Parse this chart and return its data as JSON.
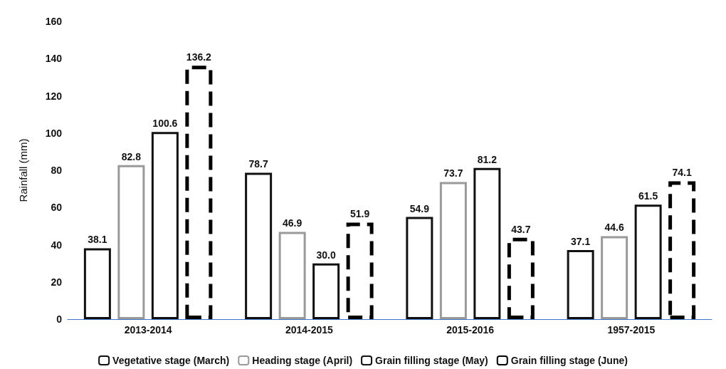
{
  "chart_data": {
    "type": "bar",
    "ylabel": "Rainfall (mm)",
    "categories": [
      "2013-2014",
      "2014-2015",
      "2015-2016",
      "1957-2015"
    ],
    "series": [
      {
        "name": "Vegetative stage (March)",
        "color": "#111111",
        "values": [
          38.1,
          78.7,
          54.9,
          37.1
        ],
        "value_labels": [
          "38.1",
          "78.7",
          "54.9",
          "37.1"
        ],
        "line_style": "solid"
      },
      {
        "name": "Heading stage (April)",
        "color": "#9a9a9a",
        "values": [
          82.8,
          46.9,
          73.7,
          44.6
        ],
        "value_labels": [
          "82.8",
          "46.9",
          "73.7",
          "44.6"
        ],
        "line_style": "solid"
      },
      {
        "name": "Grain filling stage (May)",
        "color": "#111111",
        "values": [
          100.6,
          30.0,
          81.2,
          61.5
        ],
        "value_labels": [
          "100.6",
          "30.0",
          "81.2",
          "61.5"
        ],
        "line_style": "solid"
      },
      {
        "name": "Grain filling stage (June)",
        "color": "#000000",
        "values": [
          136.2,
          51.9,
          43.7,
          74.1
        ],
        "value_labels": [
          "136.2",
          "51.9",
          "43.7",
          "74.1"
        ],
        "line_style": "dashed"
      }
    ],
    "ylim": [
      0,
      160
    ],
    "yticks": [
      0,
      20,
      40,
      60,
      80,
      100,
      120,
      140,
      160
    ],
    "grid": false,
    "legend": "bottom"
  }
}
